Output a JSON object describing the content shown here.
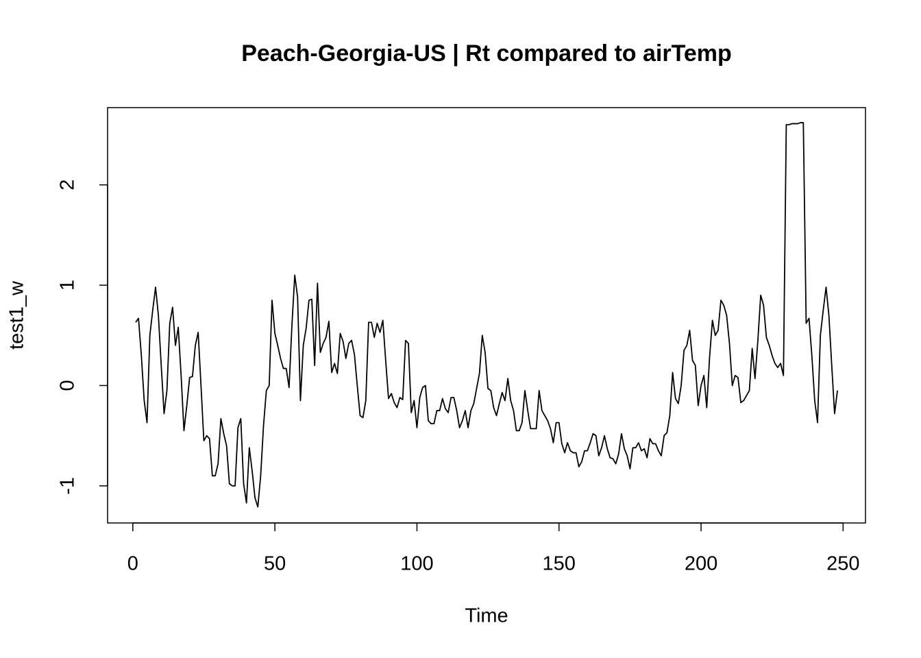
{
  "chart_data": {
    "type": "line",
    "title": "Peach-Georgia-US | Rt compared to airTemp",
    "xlabel": "Time",
    "ylabel": "test1_w",
    "color": "#000000",
    "xlim": [
      -8.88,
      257.88
    ],
    "ylim": [
      -1.37,
      2.77
    ],
    "xticks": [
      0,
      50,
      100,
      150,
      200,
      250
    ],
    "yticks": [
      -1,
      0,
      1,
      2
    ],
    "x": [
      1,
      2,
      3,
      4,
      5,
      6,
      7,
      8,
      9,
      10,
      11,
      12,
      13,
      14,
      15,
      16,
      17,
      18,
      19,
      20,
      21,
      22,
      23,
      24,
      25,
      26,
      27,
      28,
      29,
      30,
      31,
      32,
      33,
      34,
      35,
      36,
      37,
      38,
      39,
      40,
      41,
      42,
      43,
      44,
      45,
      46,
      47,
      48,
      49,
      50,
      51,
      52,
      53,
      54,
      55,
      56,
      57,
      58,
      59,
      60,
      61,
      62,
      63,
      64,
      65,
      66,
      67,
      68,
      69,
      70,
      71,
      72,
      73,
      74,
      75,
      76,
      77,
      78,
      79,
      80,
      81,
      82,
      83,
      84,
      85,
      86,
      87,
      88,
      89,
      90,
      91,
      92,
      93,
      94,
      95,
      96,
      97,
      98,
      99,
      100,
      101,
      102,
      103,
      104,
      105,
      106,
      107,
      108,
      109,
      110,
      111,
      112,
      113,
      114,
      115,
      116,
      117,
      118,
      119,
      120,
      121,
      122,
      123,
      124,
      125,
      126,
      127,
      128,
      129,
      130,
      131,
      132,
      133,
      134,
      135,
      136,
      137,
      138,
      139,
      140,
      141,
      142,
      143,
      144,
      145,
      146,
      147,
      148,
      149,
      150,
      151,
      152,
      153,
      154,
      155,
      156,
      157,
      158,
      159,
      160,
      161,
      162,
      163,
      164,
      165,
      166,
      167,
      168,
      169,
      170,
      171,
      172,
      173,
      174,
      175,
      176,
      177,
      178,
      179,
      180,
      181,
      182,
      183,
      184,
      185,
      186,
      187,
      188,
      189,
      190,
      191,
      192,
      193,
      194,
      195,
      196,
      197,
      198,
      199,
      200,
      201,
      202,
      203,
      204,
      205,
      206,
      207,
      208,
      209,
      210,
      211,
      212,
      213,
      214,
      215,
      216,
      217,
      218,
      219,
      220,
      221,
      222,
      223,
      224,
      225,
      226,
      227,
      228,
      229,
      230,
      231,
      232,
      233,
      234,
      235,
      236,
      237,
      238,
      239,
      240,
      241,
      242,
      243,
      244,
      245,
      246,
      247,
      248
    ],
    "values": [
      0.63,
      0.67,
      0.3,
      -0.15,
      -0.37,
      0.5,
      0.75,
      0.98,
      0.7,
      0.2,
      -0.28,
      -0.05,
      0.62,
      0.78,
      0.4,
      0.58,
      0.1,
      -0.45,
      -0.2,
      0.08,
      0.09,
      0.4,
      0.53,
      0.0,
      -0.55,
      -0.5,
      -0.53,
      -0.9,
      -0.9,
      -0.78,
      -0.33,
      -0.48,
      -0.6,
      -0.98,
      -1.0,
      -1.0,
      -0.42,
      -0.33,
      -0.98,
      -1.17,
      -0.62,
      -0.85,
      -1.12,
      -1.21,
      -0.9,
      -0.4,
      -0.05,
      0.0,
      0.85,
      0.52,
      0.4,
      0.27,
      0.17,
      0.17,
      -0.02,
      0.6,
      1.1,
      0.88,
      -0.15,
      0.4,
      0.57,
      0.85,
      0.86,
      0.2,
      1.02,
      0.33,
      0.42,
      0.48,
      0.64,
      0.13,
      0.22,
      0.12,
      0.52,
      0.44,
      0.27,
      0.42,
      0.45,
      0.31,
      0.0,
      -0.3,
      -0.32,
      -0.15,
      0.63,
      0.63,
      0.48,
      0.62,
      0.53,
      0.65,
      0.25,
      -0.13,
      -0.08,
      -0.17,
      -0.22,
      -0.12,
      -0.14,
      0.45,
      0.42,
      -0.27,
      -0.15,
      -0.42,
      -0.12,
      -0.02,
      0.0,
      -0.35,
      -0.38,
      -0.38,
      -0.25,
      -0.25,
      -0.13,
      -0.23,
      -0.27,
      -0.12,
      -0.12,
      -0.25,
      -0.42,
      -0.35,
      -0.25,
      -0.42,
      -0.25,
      -0.18,
      -0.03,
      0.12,
      0.5,
      0.33,
      -0.03,
      -0.05,
      -0.22,
      -0.3,
      -0.18,
      -0.07,
      -0.15,
      0.07,
      -0.15,
      -0.25,
      -0.45,
      -0.45,
      -0.37,
      -0.05,
      -0.25,
      -0.43,
      -0.43,
      -0.43,
      -0.05,
      -0.25,
      -0.3,
      -0.35,
      -0.43,
      -0.57,
      -0.37,
      -0.37,
      -0.58,
      -0.67,
      -0.57,
      -0.65,
      -0.67,
      -0.67,
      -0.81,
      -0.76,
      -0.65,
      -0.65,
      -0.57,
      -0.48,
      -0.5,
      -0.7,
      -0.62,
      -0.5,
      -0.63,
      -0.72,
      -0.73,
      -0.78,
      -0.68,
      -0.48,
      -0.63,
      -0.7,
      -0.83,
      -0.62,
      -0.62,
      -0.57,
      -0.65,
      -0.63,
      -0.72,
      -0.53,
      -0.58,
      -0.58,
      -0.65,
      -0.7,
      -0.5,
      -0.47,
      -0.3,
      0.13,
      -0.13,
      -0.18,
      0.0,
      0.35,
      0.4,
      0.55,
      0.25,
      0.2,
      -0.2,
      0.0,
      0.1,
      -0.22,
      0.28,
      0.65,
      0.5,
      0.55,
      0.85,
      0.8,
      0.7,
      0.42,
      0.0,
      0.1,
      0.08,
      -0.17,
      -0.15,
      -0.1,
      -0.05,
      0.37,
      0.07,
      0.45,
      0.9,
      0.8,
      0.48,
      0.4,
      0.3,
      0.22,
      0.18,
      0.22,
      0.1,
      2.6,
      2.6,
      2.61,
      2.61,
      2.61,
      2.62,
      2.62,
      0.62,
      0.67,
      0.3,
      -0.15,
      -0.37,
      0.5,
      0.75,
      0.98,
      0.7,
      0.2,
      -0.28,
      -0.05
    ]
  }
}
